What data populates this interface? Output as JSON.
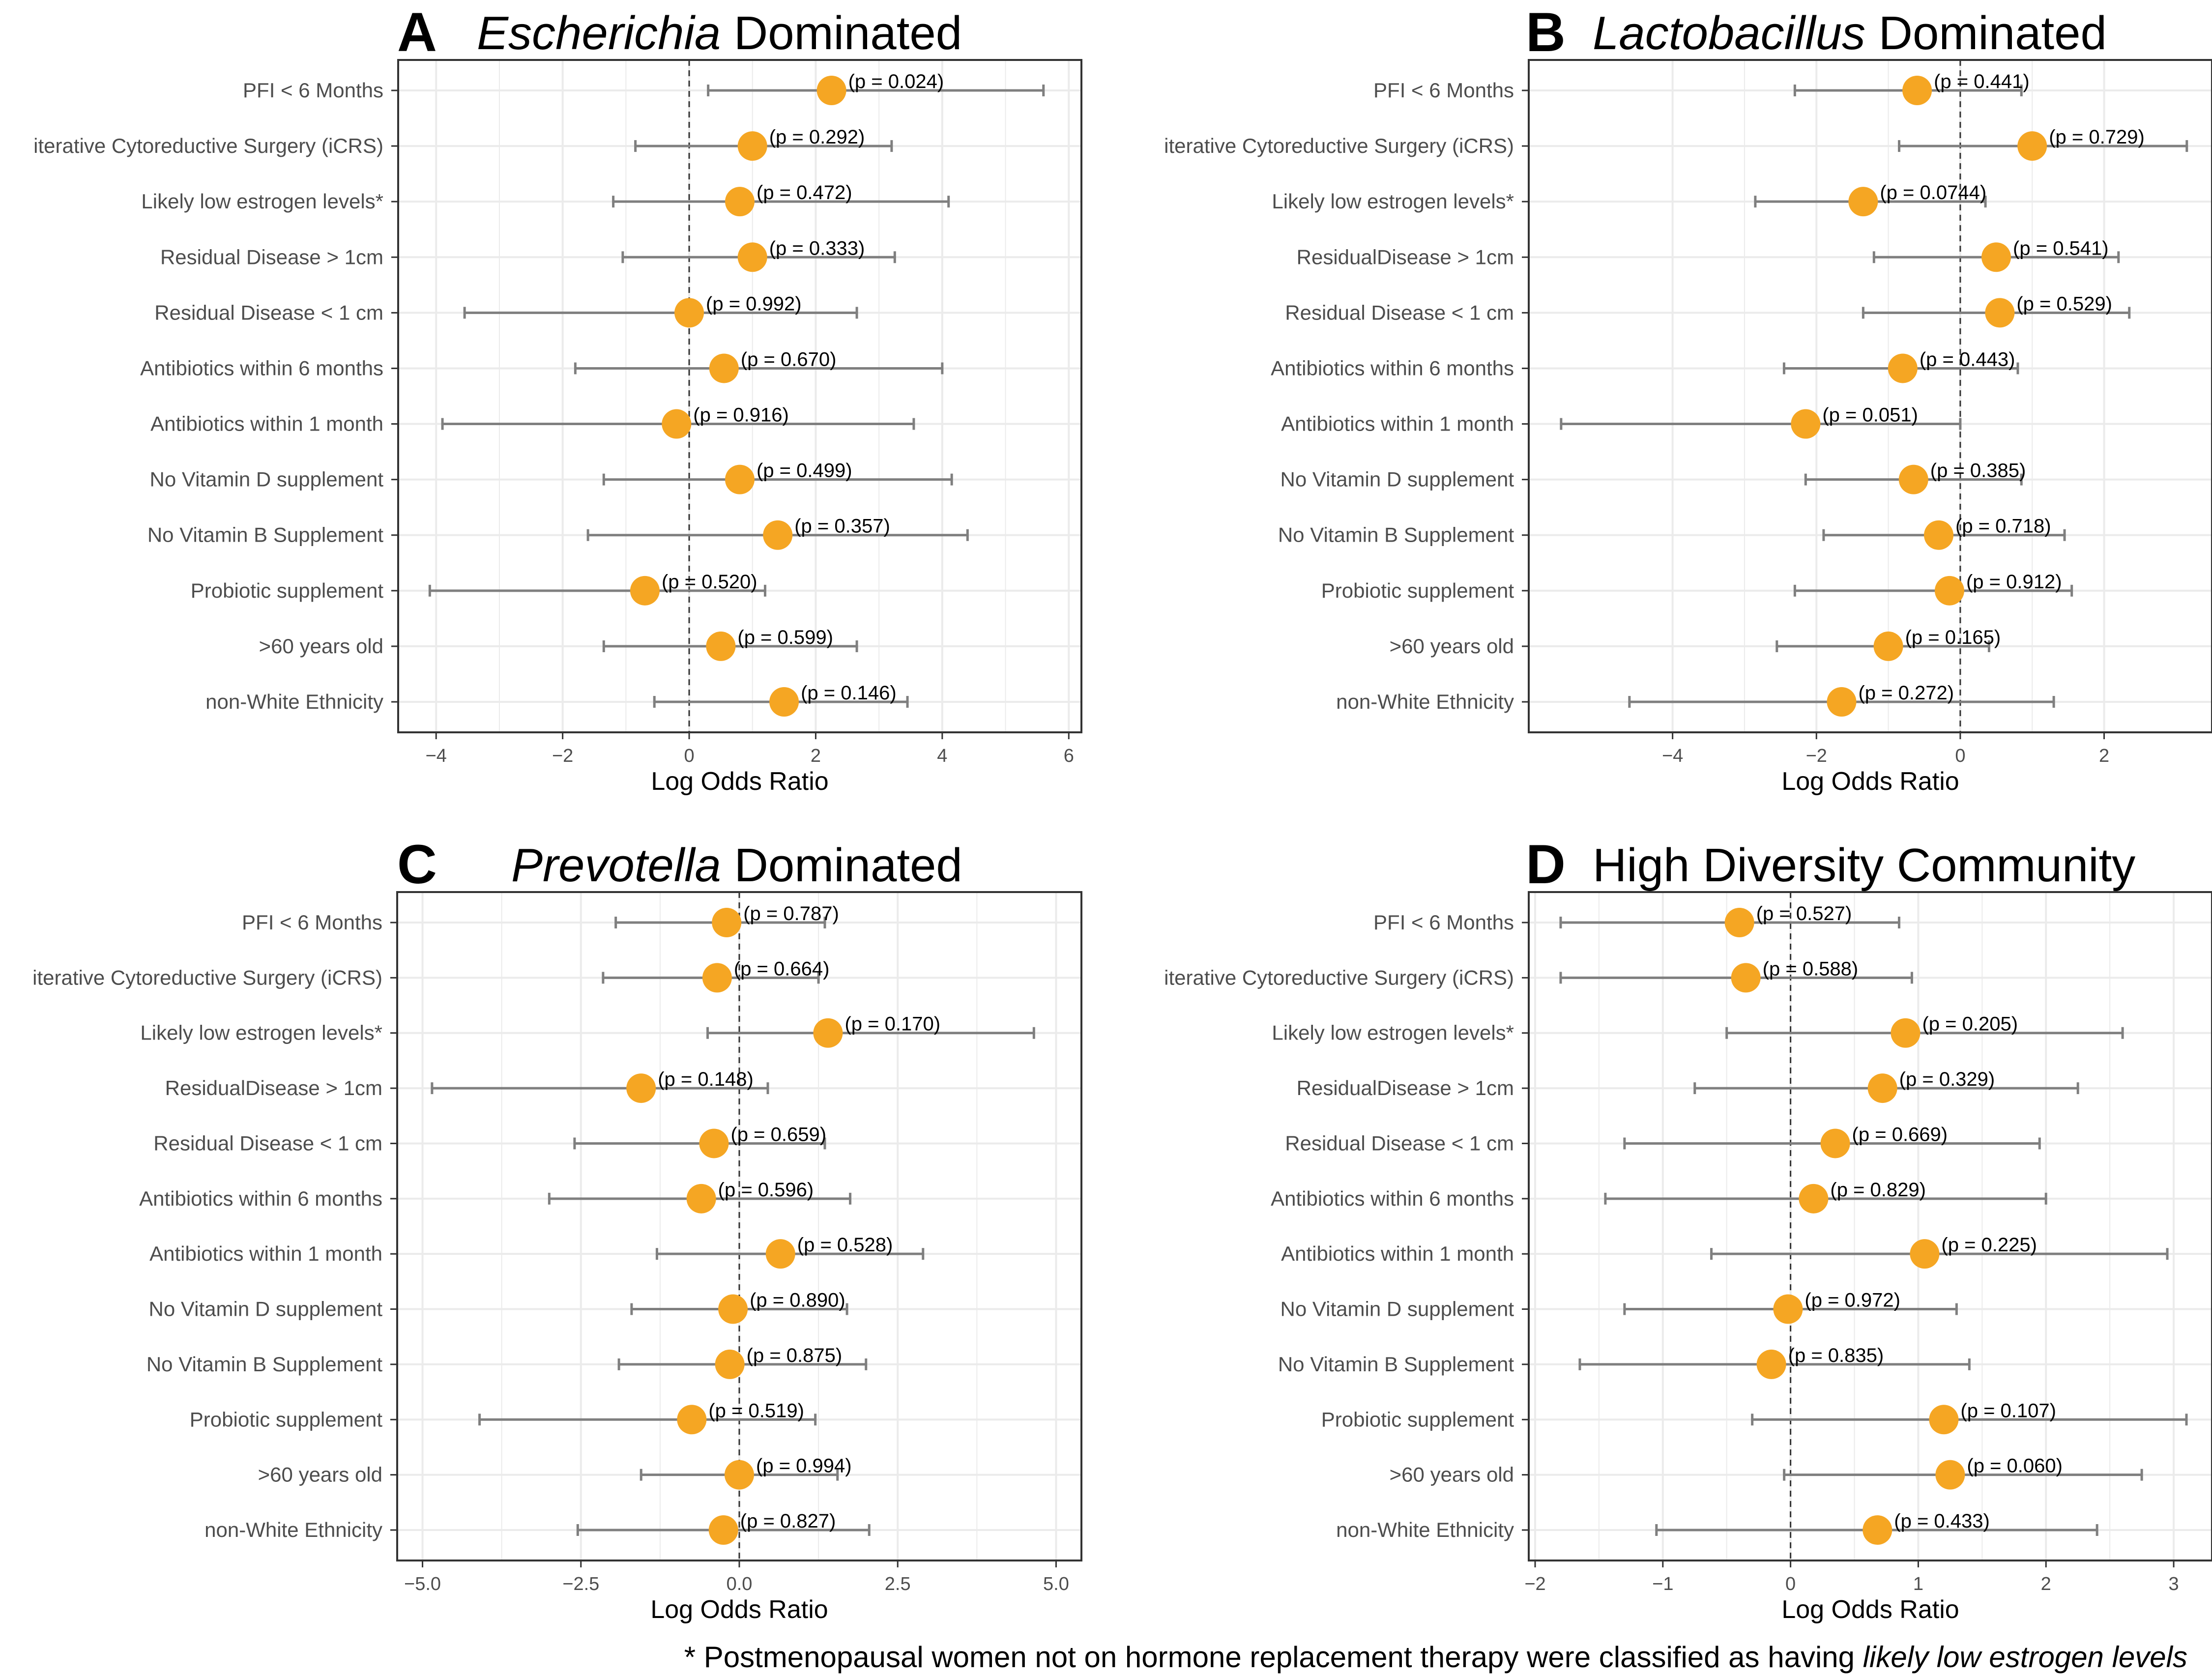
{
  "footnote": {
    "prefix": "* Postmenopausal women not on hormone replacement therapy were classified as having ",
    "italic": "likely low estrogen levels"
  },
  "colors": {
    "point": "#F5A623",
    "errorbar": "#7f7f7f",
    "grid": "#ebebeb",
    "zero_line": "#333333",
    "border": "#333333"
  },
  "chart_data": [
    {
      "panel": "A",
      "title_italic": "Escherichia",
      "title_rest": " Dominated",
      "type": "scatter",
      "xlabel": "Log Odds Ratio",
      "xlim": [
        -4.6,
        6.2
      ],
      "xticks": [
        -4,
        -2,
        0,
        2,
        4,
        6
      ],
      "xtick_labels": [
        "−4",
        "−2",
        "0",
        "2",
        "4",
        "6"
      ],
      "rows": [
        {
          "label": "PFI < 6 Months",
          "estimate": 2.25,
          "lower": 0.3,
          "upper": 5.6,
          "p": "(p = 0.024)"
        },
        {
          "label": "iterative Cytoreductive Surgery (iCRS)",
          "estimate": 1.0,
          "lower": -0.85,
          "upper": 3.2,
          "p": "(p = 0.292)"
        },
        {
          "label": "Likely low estrogen levels*",
          "estimate": 0.8,
          "lower": -1.2,
          "upper": 4.1,
          "p": "(p = 0.472)"
        },
        {
          "label": "Residual Disease > 1cm",
          "estimate": 1.0,
          "lower": -1.05,
          "upper": 3.25,
          "p": "(p = 0.333)"
        },
        {
          "label": "Residual Disease < 1 cm",
          "estimate": 0.0,
          "lower": -3.55,
          "upper": 2.65,
          "p": "(p = 0.992)"
        },
        {
          "label": "Antibiotics within 6 months",
          "estimate": 0.55,
          "lower": -1.8,
          "upper": 4.0,
          "p": "(p = 0.670)"
        },
        {
          "label": "Antibiotics within 1 month",
          "estimate": -0.2,
          "lower": -3.9,
          "upper": 3.55,
          "p": "(p = 0.916)"
        },
        {
          "label": "No Vitamin D supplement",
          "estimate": 0.8,
          "lower": -1.35,
          "upper": 4.15,
          "p": "(p = 0.499)"
        },
        {
          "label": "No Vitamin B Supplement",
          "estimate": 1.4,
          "lower": -1.6,
          "upper": 4.4,
          "p": "(p = 0.357)"
        },
        {
          "label": "Probiotic supplement",
          "estimate": -0.7,
          "lower": -4.1,
          "upper": 1.2,
          "p": "(p = 0.520)"
        },
        {
          "label": ">60 years old",
          "estimate": 0.5,
          "lower": -1.35,
          "upper": 2.65,
          "p": "(p = 0.599)"
        },
        {
          "label": "non-White Ethnicity",
          "estimate": 1.5,
          "lower": -0.55,
          "upper": 3.45,
          "p": "(p = 0.146)"
        }
      ]
    },
    {
      "panel": "B",
      "title_italic": "Lactobacillus",
      "title_rest": " Dominated",
      "type": "scatter",
      "xlabel": "Log Odds Ratio",
      "xlim": [
        -6.0,
        3.5
      ],
      "xticks": [
        -4,
        -2,
        0,
        2
      ],
      "xtick_labels": [
        "−4",
        "−2",
        "0",
        "2"
      ],
      "rows": [
        {
          "label": "PFI < 6 Months",
          "estimate": -0.6,
          "lower": -2.3,
          "upper": 0.85,
          "p": "(p = 0.441)"
        },
        {
          "label": "iterative Cytoreductive Surgery (iCRS)",
          "estimate": 1.0,
          "lower": -0.85,
          "upper": 3.15,
          "p": "(p = 0.729)"
        },
        {
          "label": "Likely low estrogen levels*",
          "estimate": -1.35,
          "lower": -2.85,
          "upper": 0.35,
          "p": "(p = 0.0744)"
        },
        {
          "label": "ResidualDisease > 1cm",
          "estimate": 0.5,
          "lower": -1.2,
          "upper": 2.2,
          "p": "(p = 0.541)"
        },
        {
          "label": "Residual Disease < 1 cm",
          "estimate": 0.55,
          "lower": -1.35,
          "upper": 2.35,
          "p": "(p = 0.529)"
        },
        {
          "label": "Antibiotics within 6 months",
          "estimate": -0.8,
          "lower": -2.45,
          "upper": 0.8,
          "p": "(p = 0.443)"
        },
        {
          "label": "Antibiotics within 1 month",
          "estimate": -2.15,
          "lower": -5.55,
          "upper": 0.0,
          "p": "(p = 0.051)"
        },
        {
          "label": "No Vitamin D supplement",
          "estimate": -0.65,
          "lower": -2.15,
          "upper": 0.85,
          "p": "(p = 0.385)"
        },
        {
          "label": "No Vitamin B Supplement",
          "estimate": -0.3,
          "lower": -1.9,
          "upper": 1.45,
          "p": "(p = 0.718)"
        },
        {
          "label": "Probiotic supplement",
          "estimate": -0.15,
          "lower": -2.3,
          "upper": 1.55,
          "p": "(p = 0.912)"
        },
        {
          "label": ">60 years old",
          "estimate": -1.0,
          "lower": -2.55,
          "upper": 0.4,
          "p": "(p = 0.165)"
        },
        {
          "label": "non-White Ethnicity",
          "estimate": -1.65,
          "lower": -4.6,
          "upper": 1.3,
          "p": "(p = 0.272)"
        }
      ]
    },
    {
      "panel": "C",
      "title_italic": "Prevotella",
      "title_rest": " Dominated",
      "type": "scatter",
      "xlabel": "Log Odds Ratio",
      "xlim": [
        -5.4,
        5.4
      ],
      "xticks": [
        -5.0,
        -2.5,
        0.0,
        2.5,
        5.0
      ],
      "xtick_labels": [
        "−5.0",
        "−2.5",
        "0.0",
        "2.5",
        "5.0"
      ],
      "rows": [
        {
          "label": "PFI < 6 Months",
          "estimate": -0.2,
          "lower": -1.95,
          "upper": 1.35,
          "p": "(p = 0.787)"
        },
        {
          "label": "iterative Cytoreductive Surgery (iCRS)",
          "estimate": -0.35,
          "lower": -2.15,
          "upper": 1.25,
          "p": "(p = 0.664)"
        },
        {
          "label": "Likely low estrogen levels*",
          "estimate": 1.4,
          "lower": -0.5,
          "upper": 4.65,
          "p": "(p = 0.170)"
        },
        {
          "label": "ResidualDisease > 1cm",
          "estimate": -1.55,
          "lower": -4.85,
          "upper": 0.45,
          "p": "(p = 0.148)"
        },
        {
          "label": "Residual Disease < 1 cm",
          "estimate": -0.4,
          "lower": -2.6,
          "upper": 1.35,
          "p": "(p = 0.659)"
        },
        {
          "label": "Antibiotics within 6 months",
          "estimate": -0.6,
          "lower": -3.0,
          "upper": 1.75,
          "p": "(p = 0.596)"
        },
        {
          "label": "Antibiotics within 1 month",
          "estimate": 0.65,
          "lower": -1.3,
          "upper": 2.9,
          "p": "(p = 0.528)"
        },
        {
          "label": "No Vitamin D supplement",
          "estimate": -0.1,
          "lower": -1.7,
          "upper": 1.7,
          "p": "(p = 0.890)"
        },
        {
          "label": "No Vitamin B Supplement",
          "estimate": -0.15,
          "lower": -1.9,
          "upper": 2.0,
          "p": "(p = 0.875)"
        },
        {
          "label": "Probiotic supplement",
          "estimate": -0.75,
          "lower": -4.1,
          "upper": 1.2,
          "p": "(p = 0.519)"
        },
        {
          "label": ">60 years old",
          "estimate": 0.0,
          "lower": -1.55,
          "upper": 1.55,
          "p": "(p = 0.994)"
        },
        {
          "label": "non-White Ethnicity",
          "estimate": -0.25,
          "lower": -2.55,
          "upper": 2.05,
          "p": "(p = 0.827)"
        }
      ]
    },
    {
      "panel": "D",
      "title_italic": "",
      "title_rest": "High Diversity Community",
      "type": "scatter",
      "xlabel": "Log Odds Ratio",
      "xlim": [
        -2.05,
        3.3
      ],
      "xticks": [
        -2,
        -1,
        0,
        1,
        2,
        3
      ],
      "xtick_labels": [
        "−2",
        "−1",
        "0",
        "1",
        "2",
        "3"
      ],
      "rows": [
        {
          "label": "PFI < 6 Months",
          "estimate": -0.4,
          "lower": -1.8,
          "upper": 0.85,
          "p": "(p = 0.527)"
        },
        {
          "label": "iterative Cytoreductive Surgery (iCRS)",
          "estimate": -0.35,
          "lower": -1.8,
          "upper": 0.95,
          "p": "(p = 0.588)"
        },
        {
          "label": "Likely low estrogen levels*",
          "estimate": 0.9,
          "lower": -0.5,
          "upper": 2.6,
          "p": "(p = 0.205)"
        },
        {
          "label": "ResidualDisease > 1cm",
          "estimate": 0.72,
          "lower": -0.75,
          "upper": 2.25,
          "p": "(p = 0.329)"
        },
        {
          "label": "Residual Disease < 1 cm",
          "estimate": 0.35,
          "lower": -1.3,
          "upper": 1.95,
          "p": "(p = 0.669)"
        },
        {
          "label": "Antibiotics within 6 months",
          "estimate": 0.18,
          "lower": -1.45,
          "upper": 2.0,
          "p": "(p = 0.829)"
        },
        {
          "label": "Antibiotics within 1 month",
          "estimate": 1.05,
          "lower": -0.62,
          "upper": 2.95,
          "p": "(p = 0.225)"
        },
        {
          "label": "No Vitamin D supplement",
          "estimate": -0.02,
          "lower": -1.3,
          "upper": 1.3,
          "p": "(p = 0.972)"
        },
        {
          "label": "No Vitamin B Supplement",
          "estimate": -0.15,
          "lower": -1.65,
          "upper": 1.4,
          "p": "(p = 0.835)"
        },
        {
          "label": "Probiotic supplement",
          "estimate": 1.2,
          "lower": -0.3,
          "upper": 3.1,
          "p": "(p = 0.107)"
        },
        {
          "label": ">60 years old",
          "estimate": 1.25,
          "lower": -0.05,
          "upper": 2.75,
          "p": "(p = 0.060)"
        },
        {
          "label": "non-White Ethnicity",
          "estimate": 0.68,
          "lower": -1.05,
          "upper": 2.4,
          "p": "(p = 0.433)"
        }
      ]
    }
  ]
}
